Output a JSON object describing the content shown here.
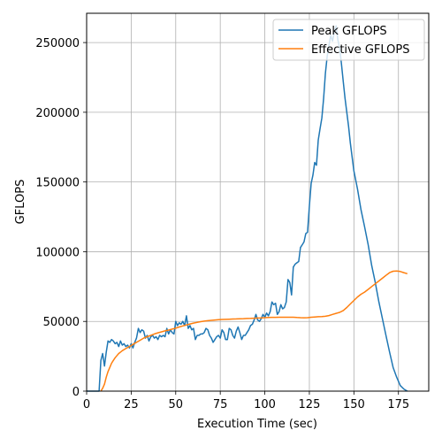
{
  "chart_data": {
    "type": "line",
    "xlabel": "Execution Time (sec)",
    "ylabel": "GFLOPS",
    "xlim": [
      0,
      192
    ],
    "ylim": [
      0,
      271000
    ],
    "xticks": [
      0,
      25,
      50,
      75,
      100,
      125,
      150,
      175
    ],
    "yticks": [
      0,
      50000,
      100000,
      150000,
      200000,
      250000
    ],
    "grid": true,
    "legend_position": "top-right",
    "series": [
      {
        "name": "Peak GFLOPS",
        "color": "#1f77b4",
        "points": [
          [
            0,
            0
          ],
          [
            7,
            0
          ],
          [
            8,
            22000
          ],
          [
            9,
            27000
          ],
          [
            10,
            18000
          ],
          [
            11,
            28000
          ],
          [
            12,
            36000
          ],
          [
            13,
            35000
          ],
          [
            14,
            37000
          ],
          [
            15,
            36000
          ],
          [
            16,
            34000
          ],
          [
            17,
            35000
          ],
          [
            18,
            32000
          ],
          [
            19,
            36000
          ],
          [
            20,
            33000
          ],
          [
            21,
            34000
          ],
          [
            22,
            32000
          ],
          [
            23,
            33000
          ],
          [
            24,
            31000
          ],
          [
            25,
            34000
          ],
          [
            26,
            31000
          ],
          [
            27,
            35000
          ],
          [
            28,
            38000
          ],
          [
            29,
            45000
          ],
          [
            30,
            42000
          ],
          [
            31,
            44000
          ],
          [
            32,
            43000
          ],
          [
            33,
            38000
          ],
          [
            34,
            40000
          ],
          [
            35,
            36000
          ],
          [
            36,
            39000
          ],
          [
            37,
            40000
          ],
          [
            38,
            38000
          ],
          [
            39,
            39000
          ],
          [
            40,
            37000
          ],
          [
            41,
            40000
          ],
          [
            42,
            39000
          ],
          [
            43,
            40000
          ],
          [
            44,
            39000
          ],
          [
            45,
            45000
          ],
          [
            46,
            41000
          ],
          [
            47,
            44000
          ],
          [
            48,
            42000
          ],
          [
            49,
            41000
          ],
          [
            50,
            50000
          ],
          [
            51,
            47000
          ],
          [
            52,
            49000
          ],
          [
            53,
            48000
          ],
          [
            54,
            50000
          ],
          [
            55,
            47000
          ],
          [
            56,
            54000
          ],
          [
            57,
            45000
          ],
          [
            58,
            47000
          ],
          [
            59,
            44000
          ],
          [
            60,
            45000
          ],
          [
            61,
            37000
          ],
          [
            62,
            40000
          ],
          [
            63,
            40000
          ],
          [
            64,
            41000
          ],
          [
            65,
            41000
          ],
          [
            66,
            42000
          ],
          [
            67,
            45000
          ],
          [
            68,
            44000
          ],
          [
            69,
            40000
          ],
          [
            70,
            38000
          ],
          [
            71,
            35000
          ],
          [
            72,
            37000
          ],
          [
            73,
            39000
          ],
          [
            74,
            40000
          ],
          [
            75,
            38000
          ],
          [
            76,
            44000
          ],
          [
            77,
            42000
          ],
          [
            78,
            37000
          ],
          [
            79,
            37000
          ],
          [
            80,
            45000
          ],
          [
            81,
            44000
          ],
          [
            82,
            40000
          ],
          [
            83,
            38000
          ],
          [
            84,
            43000
          ],
          [
            85,
            46000
          ],
          [
            86,
            42000
          ],
          [
            87,
            37000
          ],
          [
            88,
            40000
          ],
          [
            89,
            40000
          ],
          [
            90,
            42000
          ],
          [
            91,
            44000
          ],
          [
            92,
            47000
          ],
          [
            93,
            48000
          ],
          [
            94,
            51000
          ],
          [
            95,
            55000
          ],
          [
            96,
            51000
          ],
          [
            97,
            50000
          ],
          [
            98,
            52000
          ],
          [
            99,
            55000
          ],
          [
            100,
            53000
          ],
          [
            101,
            56000
          ],
          [
            102,
            54000
          ],
          [
            103,
            57000
          ],
          [
            104,
            64000
          ],
          [
            105,
            62000
          ],
          [
            106,
            63000
          ],
          [
            107,
            55000
          ],
          [
            108,
            57000
          ],
          [
            109,
            62000
          ],
          [
            110,
            59000
          ],
          [
            111,
            60000
          ],
          [
            112,
            64000
          ],
          [
            113,
            80000
          ],
          [
            114,
            78000
          ],
          [
            115,
            69000
          ],
          [
            116,
            89000
          ],
          [
            117,
            91000
          ],
          [
            118,
            92000
          ],
          [
            119,
            93000
          ],
          [
            120,
            103000
          ],
          [
            121,
            105000
          ],
          [
            122,
            107000
          ],
          [
            123,
            113000
          ],
          [
            124,
            114000
          ],
          [
            125,
            133000
          ],
          [
            126,
            149000
          ],
          [
            127,
            155000
          ],
          [
            128,
            164000
          ],
          [
            129,
            162000
          ],
          [
            130,
            180000
          ],
          [
            131,
            188000
          ],
          [
            132,
            196000
          ],
          [
            133,
            210000
          ],
          [
            134,
            228000
          ],
          [
            135,
            240000
          ],
          [
            136,
            248000
          ],
          [
            137,
            255000
          ],
          [
            138,
            251000
          ],
          [
            139,
            258000
          ],
          [
            140,
            262000
          ],
          [
            141,
            252000
          ],
          [
            142,
            246000
          ],
          [
            143,
            235000
          ],
          [
            144,
            222000
          ],
          [
            145,
            210000
          ],
          [
            146,
            200000
          ],
          [
            147,
            190000
          ],
          [
            148,
            178000
          ],
          [
            149,
            168000
          ],
          [
            150,
            158000
          ],
          [
            152,
            145000
          ],
          [
            154,
            130000
          ],
          [
            156,
            118000
          ],
          [
            158,
            105000
          ],
          [
            160,
            90000
          ],
          [
            162,
            78000
          ],
          [
            164,
            64000
          ],
          [
            166,
            52000
          ],
          [
            168,
            40000
          ],
          [
            170,
            28000
          ],
          [
            172,
            17000
          ],
          [
            174,
            10000
          ],
          [
            176,
            4000
          ],
          [
            178,
            1500
          ],
          [
            180,
            0
          ]
        ]
      },
      {
        "name": "Effective GFLOPS",
        "color": "#ff7f0e",
        "points": [
          [
            8,
            0
          ],
          [
            9,
            2000
          ],
          [
            10,
            5000
          ],
          [
            11,
            10000
          ],
          [
            12,
            14000
          ],
          [
            13,
            17000
          ],
          [
            14,
            20000
          ],
          [
            15,
            22000
          ],
          [
            16,
            24000
          ],
          [
            17,
            25500
          ],
          [
            18,
            27000
          ],
          [
            19,
            28000
          ],
          [
            20,
            29000
          ],
          [
            22,
            30500
          ],
          [
            24,
            32000
          ],
          [
            26,
            33500
          ],
          [
            28,
            35000
          ],
          [
            30,
            36500
          ],
          [
            32,
            38000
          ],
          [
            34,
            39000
          ],
          [
            36,
            40000
          ],
          [
            38,
            41000
          ],
          [
            40,
            41800
          ],
          [
            42,
            42500
          ],
          [
            44,
            43200
          ],
          [
            46,
            43800
          ],
          [
            48,
            44500
          ],
          [
            50,
            45200
          ],
          [
            52,
            46000
          ],
          [
            54,
            46800
          ],
          [
            56,
            47500
          ],
          [
            58,
            48200
          ],
          [
            60,
            48800
          ],
          [
            62,
            49300
          ],
          [
            64,
            49800
          ],
          [
            66,
            50200
          ],
          [
            68,
            50500
          ],
          [
            70,
            50800
          ],
          [
            72,
            51000
          ],
          [
            74,
            51200
          ],
          [
            76,
            51400
          ],
          [
            78,
            51500
          ],
          [
            80,
            51600
          ],
          [
            82,
            51700
          ],
          [
            84,
            51800
          ],
          [
            86,
            51900
          ],
          [
            88,
            52000
          ],
          [
            90,
            52100
          ],
          [
            92,
            52200
          ],
          [
            94,
            52300
          ],
          [
            96,
            52400
          ],
          [
            98,
            52500
          ],
          [
            100,
            52700
          ],
          [
            102,
            52800
          ],
          [
            104,
            52900
          ],
          [
            106,
            52900
          ],
          [
            108,
            53000
          ],
          [
            110,
            53000
          ],
          [
            112,
            53000
          ],
          [
            114,
            53000
          ],
          [
            116,
            53000
          ],
          [
            118,
            52800
          ],
          [
            120,
            52700
          ],
          [
            122,
            52600
          ],
          [
            124,
            52700
          ],
          [
            126,
            53000
          ],
          [
            128,
            53200
          ],
          [
            130,
            53400
          ],
          [
            132,
            53500
          ],
          [
            134,
            53700
          ],
          [
            136,
            54200
          ],
          [
            138,
            55000
          ],
          [
            140,
            55800
          ],
          [
            142,
            56500
          ],
          [
            144,
            57800
          ],
          [
            146,
            60000
          ],
          [
            148,
            62500
          ],
          [
            150,
            65000
          ],
          [
            152,
            67500
          ],
          [
            154,
            69500
          ],
          [
            156,
            71000
          ],
          [
            158,
            73000
          ],
          [
            160,
            75000
          ],
          [
            162,
            77000
          ],
          [
            164,
            79000
          ],
          [
            166,
            81000
          ],
          [
            168,
            83000
          ],
          [
            170,
            85000
          ],
          [
            172,
            86000
          ],
          [
            174,
            86200
          ],
          [
            176,
            85800
          ],
          [
            178,
            85000
          ],
          [
            180,
            84200
          ]
        ]
      }
    ]
  }
}
